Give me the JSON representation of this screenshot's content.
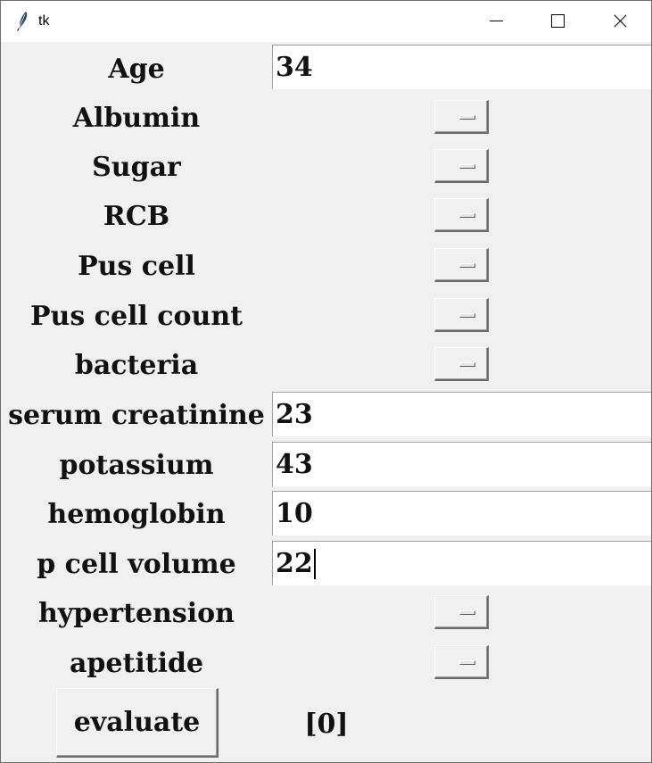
{
  "window": {
    "title": "tk"
  },
  "fields": {
    "age": {
      "label": "Age",
      "value": "34"
    },
    "albumin": {
      "label": "Albumin"
    },
    "sugar": {
      "label": "Sugar"
    },
    "rcb": {
      "label": "RCB"
    },
    "pus_cell": {
      "label": "Pus cell"
    },
    "pus_cell_count": {
      "label": "Pus cell count"
    },
    "bacteria": {
      "label": "bacteria"
    },
    "serum_creatinine": {
      "label": "serum creatinine",
      "value": "23"
    },
    "potassium": {
      "label": "potassium",
      "value": "43"
    },
    "hemoglobin": {
      "label": "hemoglobin",
      "value": "10"
    },
    "p_cell_volume": {
      "label": "p cell volume",
      "value": "22"
    },
    "hypertension": {
      "label": "hypertension"
    },
    "apetitide": {
      "label": "apetitide"
    }
  },
  "actions": {
    "evaluate_label": "evaluate"
  },
  "result": {
    "text": "[0]"
  },
  "icons": {
    "app": "tk-feather-icon",
    "minimize": "minimize-icon",
    "maximize": "maximize-icon",
    "close": "close-icon"
  }
}
